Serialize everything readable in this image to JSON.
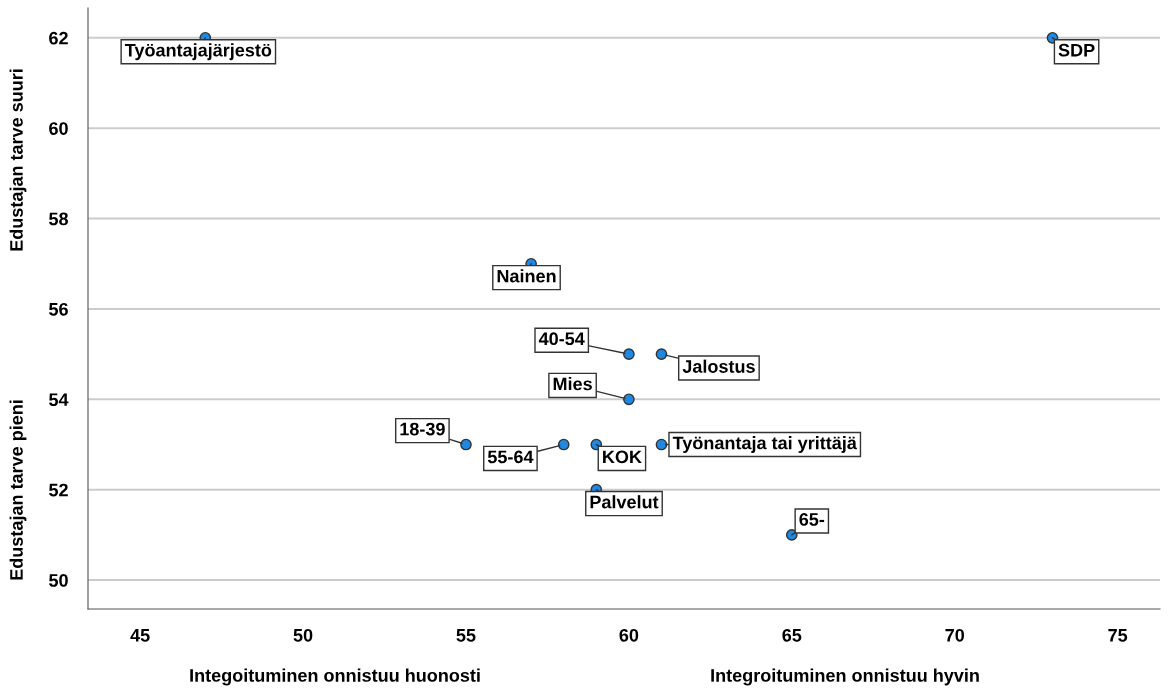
{
  "chart_data": {
    "type": "scatter",
    "xlabel": "Integoituminen onnistuu huonosti",
    "ylabel": "Edustajan tarve suuri",
    "annotations": [
      "Integroituminen onnistuu hyvin",
      "Edustajan tarve pieni",
      {
        "text": "Työantajajärjestö",
        "x": 47,
        "y": 62
      },
      {
        "text": "SDP",
        "x": 73,
        "y": 62
      },
      {
        "text": "Nainen",
        "x": 57,
        "y": 57
      },
      {
        "text": "40-54",
        "x": 60,
        "y": 55
      },
      {
        "text": "Jalostus",
        "x": 61,
        "y": 55
      },
      {
        "text": "Mies",
        "x": 60,
        "y": 54
      },
      {
        "text": "18-39",
        "x": 55,
        "y": 53
      },
      {
        "text": "55-64",
        "x": 58,
        "y": 53
      },
      {
        "text": "KOK",
        "x": 59,
        "y": 53
      },
      {
        "text": "Työnantaja tai yrittäjä",
        "x": 61,
        "y": 53
      },
      {
        "text": "Palvelut",
        "x": 59,
        "y": 52
      },
      {
        "text": "65-",
        "x": 65,
        "y": 51
      }
    ],
    "series": [
      {
        "color": "#1f88e0",
        "x": [
          47,
          73,
          57,
          60,
          61,
          60,
          55,
          58,
          59,
          61,
          59,
          65
        ],
        "values": [
          62,
          62,
          57,
          55,
          55,
          54,
          53,
          53,
          53,
          53,
          52,
          51
        ]
      }
    ],
    "xlim": [
      43.4,
      76.3
    ],
    "xticks": [
      45,
      50,
      55,
      60,
      65,
      70,
      75
    ],
    "ylim": [
      49.36,
      62.66
    ],
    "yticks": [
      50,
      52,
      54,
      56,
      58,
      60,
      62
    ],
    "grid": "y",
    "marker": "circle"
  }
}
